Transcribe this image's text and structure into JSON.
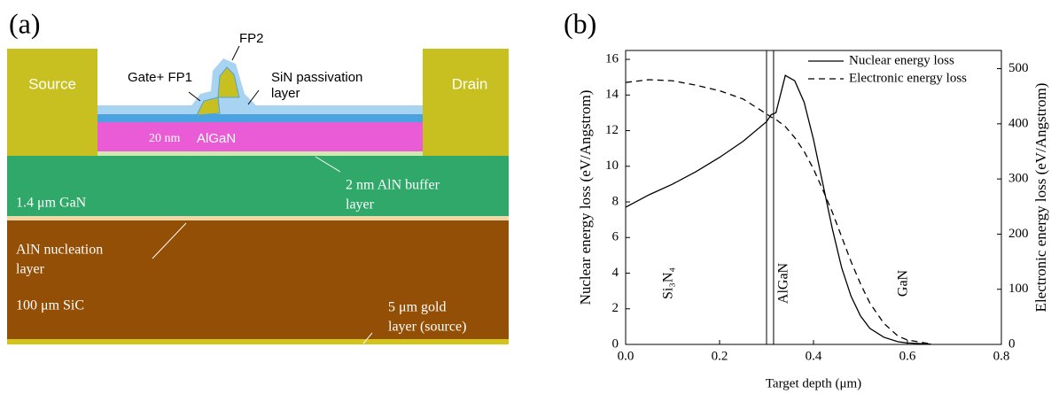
{
  "panel_labels": [
    "(a)",
    "(b)"
  ],
  "diagram": {
    "source": "Source",
    "drain": "Drain",
    "gate": "Gate+ FP1",
    "fp2": "FP2",
    "passivation": [
      "SiN passivation",
      "layer"
    ],
    "algan_thickness": "20 nm",
    "algan": "AlGaN",
    "buffer": [
      "2 nm AlN buffer",
      "layer"
    ],
    "gan": "1.4 μm GaN",
    "nucleation": [
      "AlN nucleation",
      "layer"
    ],
    "sic": "100 μm SiC",
    "gold": [
      "5 μm gold",
      "layer (source)"
    ]
  },
  "chart_data": {
    "type": "line",
    "x_label": "Target depth (μm)",
    "y_label": "Nuclear energy loss (eV/Angstrom)",
    "y2_label": "Electronic energy loss (eV/Angstrom)",
    "x": [
      0,
      0.05,
      0.1,
      0.15,
      0.2,
      0.25,
      0.3,
      0.31,
      0.32,
      0.34,
      0.36,
      0.38,
      0.4,
      0.42,
      0.44,
      0.46,
      0.48,
      0.5,
      0.52,
      0.55,
      0.58,
      0.6,
      0.65
    ],
    "series": [
      {
        "name": "Nuclear energy loss",
        "color": "#000000",
        "style": "solid",
        "values": [
          7.7,
          8.4,
          9.0,
          9.7,
          10.5,
          11.4,
          12.5,
          12.9,
          13.0,
          15.1,
          14.8,
          13.6,
          11.5,
          9.0,
          6.5,
          4.3,
          2.7,
          1.6,
          0.9,
          0.4,
          0.15,
          0.08,
          0.02
        ]
      },
      {
        "name": "Electronic energy loss",
        "color": "#000000",
        "style": "dashed",
        "axis": "y2",
        "values": [
          475,
          480,
          478,
          470,
          460,
          445,
          418,
          412,
          408,
          395,
          375,
          350,
          318,
          280,
          240,
          195,
          150,
          110,
          75,
          38,
          15,
          8,
          1
        ]
      }
    ],
    "xlim": [
      0,
      0.8
    ],
    "xticks": [
      {
        "value": 0,
        "label": "0.0"
      },
      0.2,
      0.4,
      0.6,
      0.8
    ],
    "ylim": [
      0,
      16.5
    ],
    "yticks": [
      0,
      2,
      4,
      6,
      8,
      10,
      12,
      14,
      16
    ],
    "y2lim": [
      0,
      533
    ],
    "y2ticks": [
      0,
      100,
      200,
      300,
      400,
      500
    ],
    "boundaries": [
      0.3,
      0.315
    ],
    "regions": [
      "Si₃N₄",
      "AlGaN",
      "GaN"
    ],
    "legend": "upper-right"
  }
}
